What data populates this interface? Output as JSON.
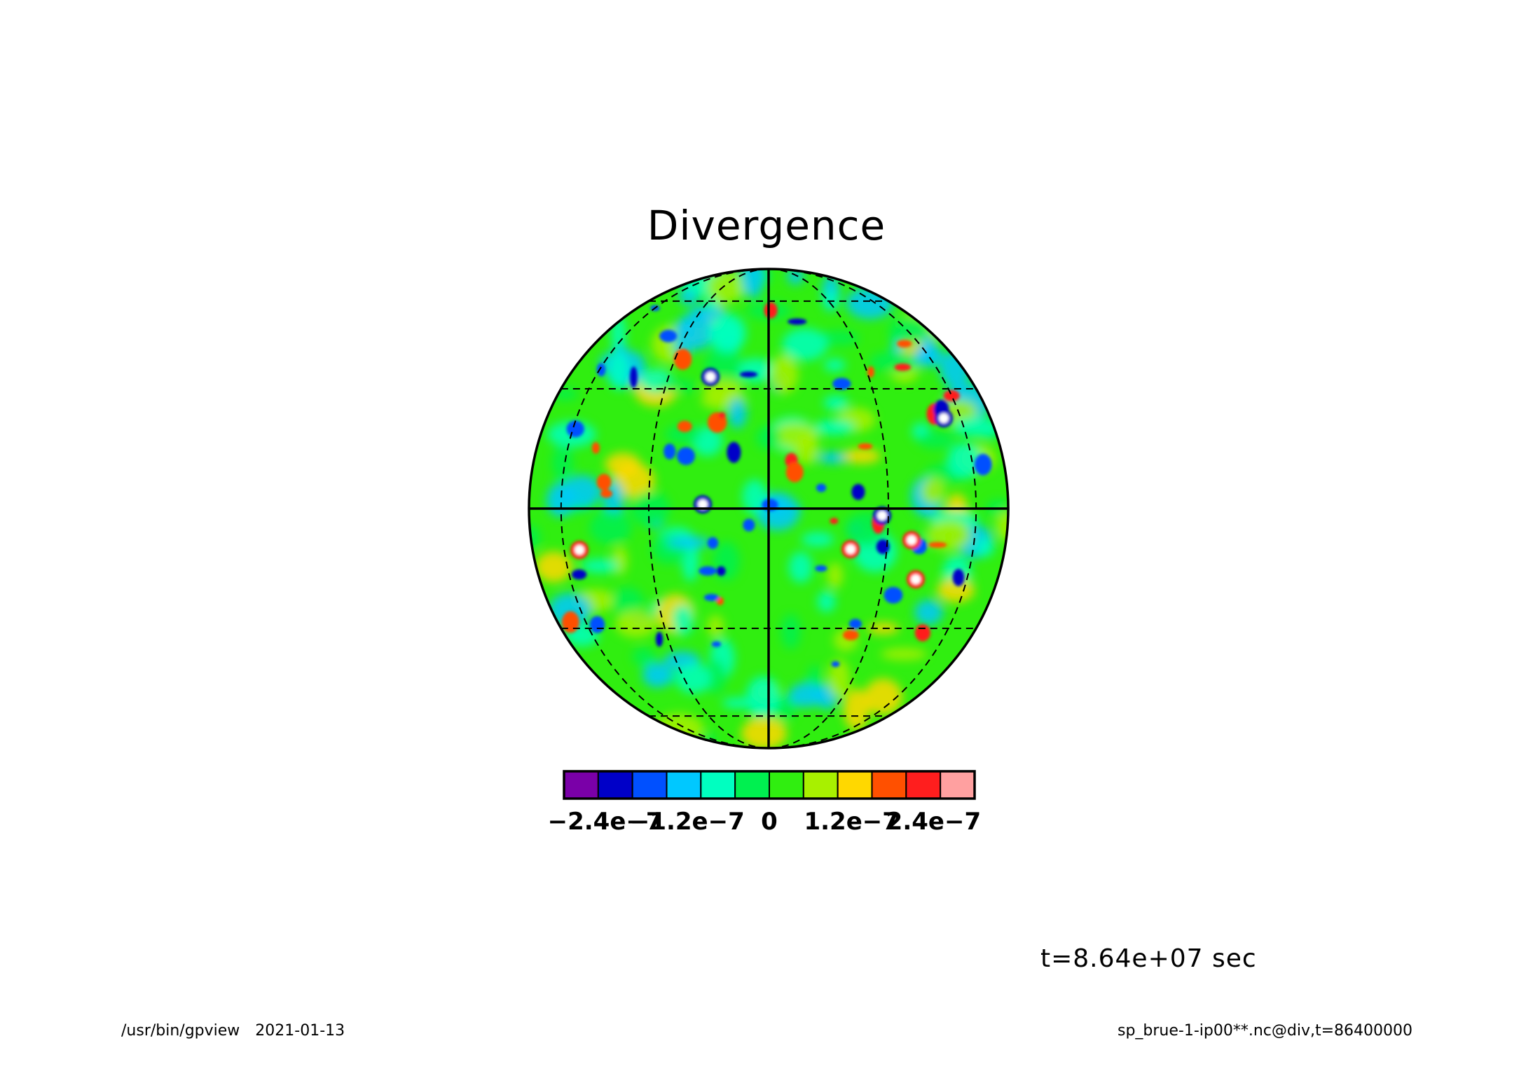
{
  "chart_data": {
    "type": "heatmap",
    "title": "Divergence",
    "projection": "orthographic globe with dashed latitude/longitude grid, solid equator and central meridian",
    "field": "div",
    "colorbar": {
      "colors": [
        "#7a00a8",
        "#0000c8",
        "#0050ff",
        "#00c8ff",
        "#00ffc0",
        "#00f050",
        "#30ee10",
        "#a8f000",
        "#ffd800",
        "#ff5000",
        "#ff1e1e",
        "#ffa0a0"
      ],
      "tick_labels": [
        "−2.4e−7",
        "−1.2e−7",
        "0",
        "1.2e−7",
        "2.4e−7"
      ],
      "tick_values": [
        -2.4e-07,
        -1.2e-07,
        0,
        1.2e-07,
        2.4e-07
      ],
      "range": [
        -3e-07,
        3e-07
      ]
    },
    "annotation_time": "t=8.64e+07 sec"
  },
  "footer": {
    "program": "/usr/bin/gpview",
    "date": "2021-01-13",
    "source": "sp_brue-1-ip00**.nc@div,t=86400000"
  },
  "colors": {
    "background_field": "#30ee10",
    "ocean_tone": "#00f050",
    "outline": "#000000"
  }
}
